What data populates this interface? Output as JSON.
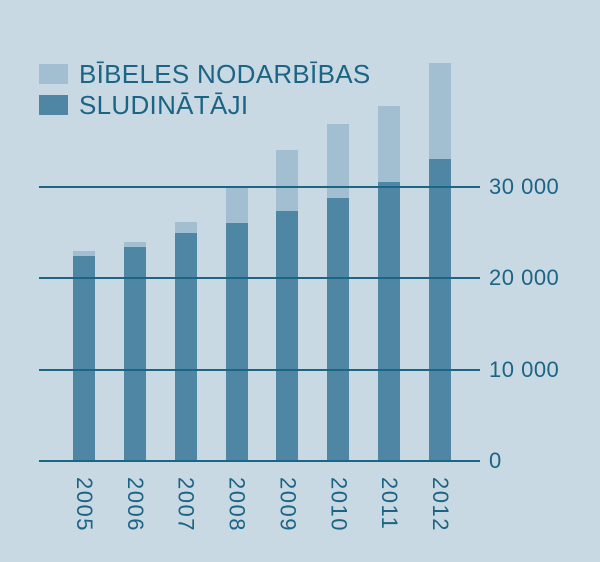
{
  "chart_data": {
    "type": "bar",
    "stacked": true,
    "title": "",
    "categories": [
      "2005",
      "2006",
      "2007",
      "2008",
      "2009",
      "2010",
      "2011",
      "2012"
    ],
    "series": [
      {
        "name": "SLUDINĀTĀJI",
        "color": "#4e86a4",
        "values": [
          22400,
          23400,
          24900,
          26000,
          27300,
          28700,
          30500,
          33000
        ]
      },
      {
        "name": "BĪBELES NODARBĪBAS",
        "color": "#a2bfd2",
        "values": [
          500,
          500,
          1200,
          4100,
          6700,
          8100,
          8300,
          10500
        ]
      }
    ],
    "y_axis": {
      "range": [
        0,
        44000
      ],
      "ticks": [
        {
          "value": 30000,
          "label": "30 000"
        },
        {
          "value": 20000,
          "label": "20 000"
        },
        {
          "value": 10000,
          "label": "10 000"
        },
        {
          "value": 0,
          "label": "0"
        }
      ],
      "gridlines": "horizontal, drawn over bars",
      "labels_position": "right"
    },
    "x_axis": {
      "labels_rotated": "90deg reading downward"
    },
    "legend": {
      "position": "top-left",
      "items": [
        {
          "label": "BĪBELES NODARBĪBAS",
          "color": "#a2bfd2"
        },
        {
          "label": "SLUDINĀTĀJI",
          "color": "#4e86a4"
        }
      ]
    },
    "colors": {
      "background": "#c9d9e3",
      "grid_line": "#1d6683",
      "text": "#1c6484"
    }
  }
}
